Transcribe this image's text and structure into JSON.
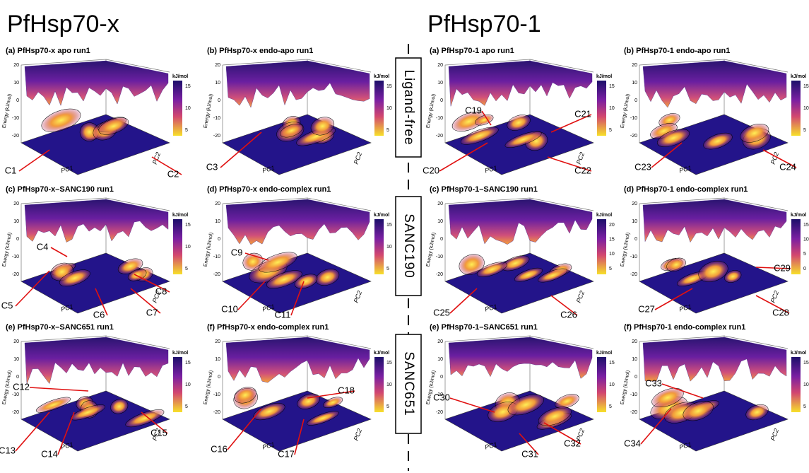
{
  "headers": [
    "PfHsp70-x",
    "PfHsp70-1"
  ],
  "conditions": [
    "Ligand-free",
    "SANC190",
    "SANC651"
  ],
  "axis_labels": {
    "z": "Energy (kJ/mol)",
    "x": "PC1",
    "y": "PC2"
  },
  "z_ticks": [
    20,
    10,
    0,
    -10,
    -20
  ],
  "colorbar_unit": "kJ/mol",
  "panels": [
    {
      "title": "(a) PfHsp70-x apo run1",
      "colorbar_ticks": [
        5,
        10,
        15
      ],
      "clusters": [
        "C1",
        "C2"
      ]
    },
    {
      "title": "(b) PfHsp70-x endo-apo run1",
      "colorbar_ticks": [
        5,
        10,
        15
      ],
      "clusters": [
        "C3"
      ]
    },
    {
      "title": "(a) PfHsp70-1 apo run1",
      "colorbar_ticks": [
        5,
        10,
        15
      ],
      "clusters": [
        "C19",
        "C20",
        "C21",
        "C22"
      ]
    },
    {
      "title": "(b) PfHsp70-1 endo-apo run1",
      "colorbar_ticks": [
        5,
        10,
        15
      ],
      "clusters": [
        "C23",
        "C24"
      ]
    },
    {
      "title": "(c) PfHsp70-x–SANC190 run1",
      "colorbar_ticks": [
        5,
        10,
        15
      ],
      "clusters": [
        "C4",
        "C5",
        "C6",
        "C7",
        "C8"
      ]
    },
    {
      "title": "(d) PfHsp70-x endo-complex run1",
      "colorbar_ticks": [
        5,
        10,
        15
      ],
      "clusters": [
        "C9",
        "C10",
        "C11"
      ]
    },
    {
      "title": "(c) PfHsp70-1–SANC190 run1",
      "colorbar_ticks": [
        5,
        10,
        15,
        20
      ],
      "clusters": [
        "C25",
        "C26"
      ]
    },
    {
      "title": "(d) PfHsp70-1 endo-complex run1",
      "colorbar_ticks": [
        0,
        5,
        10,
        15
      ],
      "clusters": [
        "C27",
        "C28",
        "C29"
      ]
    },
    {
      "title": "(e) PfHsp70-x–SANC651 run1",
      "colorbar_ticks": [
        5,
        10,
        15
      ],
      "clusters": [
        "C12",
        "C13",
        "C14",
        "C15"
      ]
    },
    {
      "title": "(f) PfHsp70-x endo-complex run1",
      "colorbar_ticks": [
        5,
        10,
        15
      ],
      "clusters": [
        "C16",
        "C17",
        "C18"
      ]
    },
    {
      "title": "(e) PfHsp70-1–SANC651 run1",
      "colorbar_ticks": [
        5,
        10,
        15
      ],
      "clusters": [
        "C30",
        "C31",
        "C32"
      ]
    },
    {
      "title": "(f) PfHsp70-1 endo-complex run1",
      "colorbar_ticks": [
        5,
        10,
        15
      ],
      "clusters": [
        "C33",
        "C34"
      ]
    }
  ]
}
